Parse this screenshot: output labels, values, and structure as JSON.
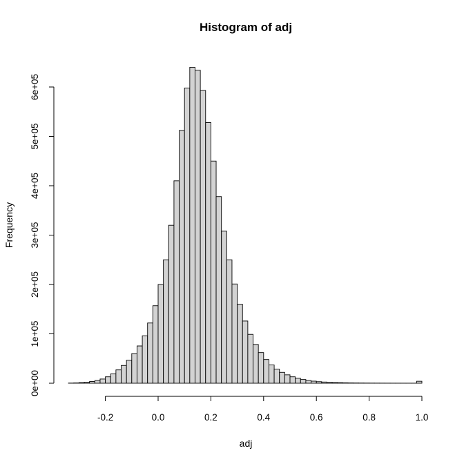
{
  "chart_data": {
    "type": "bar",
    "title": "Histogram of adj",
    "xlabel": "adj",
    "ylabel": "Frequency",
    "bin_width": 0.02,
    "x_start": -0.34,
    "xlim": [
      -0.34,
      1.0
    ],
    "ylim": [
      0,
      600000
    ],
    "x_ticks": [
      -0.2,
      0.0,
      0.2,
      0.4,
      0.6,
      0.8,
      1.0
    ],
    "x_tick_labels": [
      "-0.2",
      "0.0",
      "0.2",
      "0.4",
      "0.6",
      "0.8",
      "1.0"
    ],
    "y_ticks": [
      0,
      100000,
      200000,
      300000,
      400000,
      500000,
      600000
    ],
    "y_tick_labels": [
      "0e+00",
      "1e+05",
      "2e+05",
      "3e+05",
      "4e+05",
      "5e+05",
      "6e+05"
    ],
    "values": [
      300,
      600,
      1200,
      2000,
      3500,
      5500,
      8500,
      13000,
      19000,
      27000,
      36000,
      46500,
      60000,
      75500,
      96000,
      122000,
      157000,
      200000,
      250000,
      320000,
      410000,
      512000,
      598000,
      640000,
      634000,
      593000,
      528000,
      450000,
      378000,
      308000,
      250000,
      201000,
      160000,
      126000,
      99000,
      78500,
      62000,
      48000,
      37000,
      28500,
      22000,
      17000,
      13000,
      10000,
      7500,
      5500,
      4200,
      3100,
      2400,
      1800,
      1400,
      1100,
      850,
      650,
      500,
      400,
      320,
      260,
      220,
      180,
      150,
      130,
      110,
      100,
      90,
      85,
      4000
    ],
    "grid": false,
    "legend": false
  }
}
